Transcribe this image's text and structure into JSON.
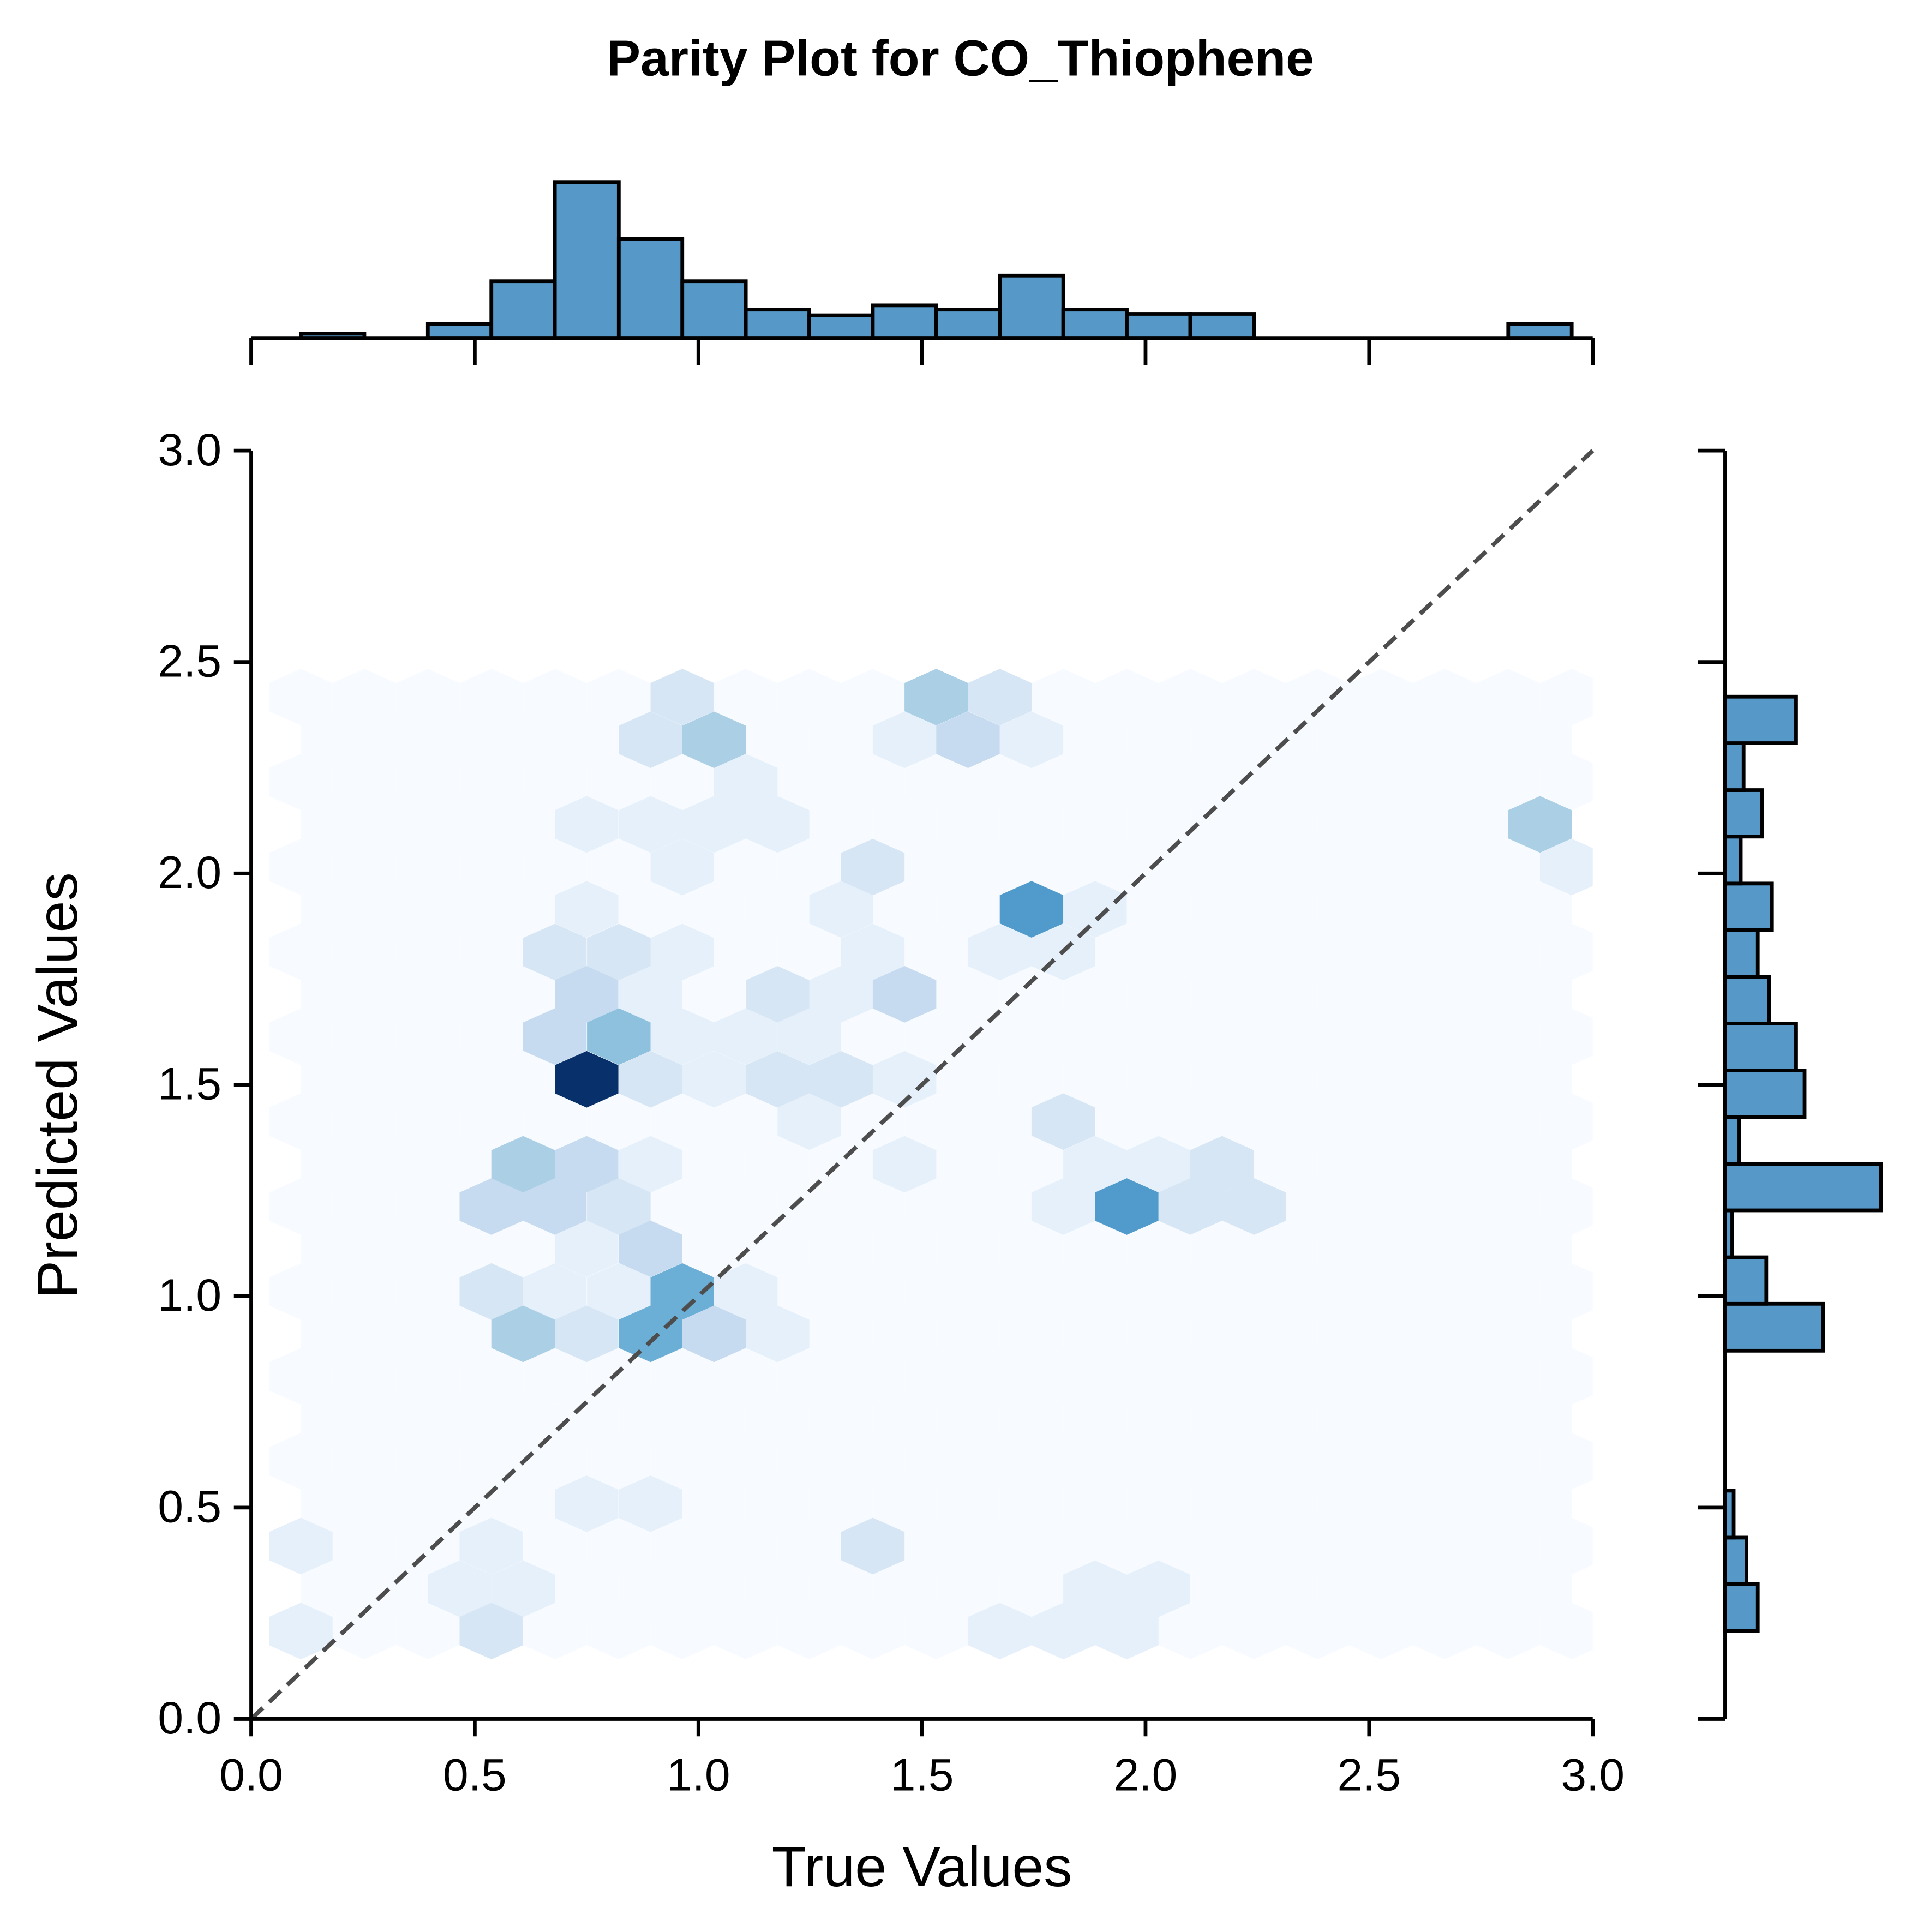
{
  "chart_data": {
    "type": "hexbin",
    "title": "Parity Plot for CO_Thiophene",
    "xlabel": "True Values",
    "ylabel": "Predicted Values",
    "xlim": [
      0,
      3
    ],
    "ylim": [
      0,
      3
    ],
    "xticks": [
      {
        "value": 0,
        "label": "0.0"
      },
      0.5,
      {
        "value": 1,
        "label": "1.0"
      },
      1.5,
      {
        "value": 2,
        "label": "2.0"
      },
      2.5,
      {
        "value": 3,
        "label": "3.0"
      }
    ],
    "yticks": [
      {
        "value": 0,
        "label": "0.0"
      },
      0.5,
      {
        "value": 1,
        "label": "1.0"
      },
      1.5,
      {
        "value": 2,
        "label": "2.0"
      },
      2.5,
      {
        "value": 3,
        "label": "3.0"
      }
    ],
    "diagonal": true,
    "hexbin": {
      "gridsize": 20,
      "extent": [
        0.111,
        2.953,
        0.208,
        2.417
      ],
      "colormap": "Blues",
      "x": [
        0.964,
        1.532,
        1.674,
        0.893,
        1.035,
        1.461,
        1.603,
        1.745,
        1.106,
        0.75,
        0.893,
        1.035,
        1.177,
        2.882,
        0.964,
        1.39,
        2.953,
        0.75,
        1.319,
        1.745,
        1.887,
        0.679,
        0.822,
        0.964,
        1.39,
        1.674,
        1.816,
        0.75,
        0.893,
        1.177,
        1.319,
        1.461,
        0.679,
        0.822,
        0.964,
        1.106,
        1.248,
        0.75,
        0.893,
        1.035,
        1.177,
        1.319,
        1.461,
        1.248,
        1.816,
        0.608,
        0.75,
        0.893,
        1.461,
        1.887,
        2.029,
        2.171,
        0.537,
        0.679,
        0.822,
        1.816,
        1.958,
        2.1,
        2.243,
        0.75,
        0.893,
        0.537,
        0.679,
        0.822,
        0.964,
        1.106,
        0.608,
        0.75,
        0.893,
        1.035,
        1.177,
        0.75,
        0.893,
        0.111,
        0.537,
        1.39,
        0.466,
        0.608,
        1.887,
        2.029,
        0.111,
        0.537,
        1.674,
        1.816,
        1.958
      ],
      "y": [
        2.417,
        2.417,
        2.417,
        2.316,
        2.316,
        2.316,
        2.316,
        2.316,
        2.216,
        2.116,
        2.116,
        2.116,
        2.116,
        2.116,
        2.015,
        2.015,
        2.015,
        1.915,
        1.915,
        1.915,
        1.915,
        1.814,
        1.814,
        1.814,
        1.814,
        1.814,
        1.814,
        1.714,
        1.714,
        1.714,
        1.714,
        1.714,
        1.614,
        1.614,
        1.614,
        1.614,
        1.614,
        1.513,
        1.513,
        1.513,
        1.513,
        1.513,
        1.513,
        1.413,
        1.413,
        1.312,
        1.312,
        1.312,
        1.312,
        1.312,
        1.312,
        1.312,
        1.212,
        1.212,
        1.212,
        1.212,
        1.212,
        1.212,
        1.212,
        1.112,
        1.112,
        1.011,
        1.011,
        1.011,
        1.011,
        1.011,
        0.911,
        0.911,
        0.911,
        0.911,
        0.911,
        0.509,
        0.509,
        0.409,
        0.409,
        0.409,
        0.308,
        0.308,
        0.308,
        0.308,
        0.208,
        0.208,
        0.208,
        0.208,
        0.208
      ],
      "counts": [
        2,
        4,
        2,
        2,
        4,
        1,
        3,
        1,
        1,
        1,
        1,
        1,
        1,
        4,
        1,
        2,
        1,
        1,
        1,
        7,
        1,
        2,
        2,
        1,
        1,
        1,
        1,
        3,
        1,
        2,
        1,
        3,
        3,
        5,
        1,
        1,
        1,
        12,
        2,
        1,
        2,
        2,
        1,
        1,
        2,
        4,
        3,
        1,
        1,
        1,
        1,
        2,
        3,
        3,
        2,
        1,
        7,
        2,
        2,
        1,
        3,
        2,
        1,
        1,
        6,
        1,
        4,
        2,
        6,
        3,
        1,
        1,
        1,
        1,
        1,
        2,
        1,
        1,
        1,
        1,
        1,
        2,
        1,
        1,
        1
      ]
    },
    "top_hist": {
      "color": "#5699c8",
      "bins": [
        0.111,
        0.253,
        0.395,
        0.537,
        0.679,
        0.822,
        0.964,
        1.106,
        1.248,
        1.39,
        1.532,
        1.674,
        1.816,
        1.958,
        2.1,
        2.243,
        2.385,
        2.527,
        2.669,
        2.811,
        2.953
      ],
      "counts": [
        0.3,
        0,
        1,
        4,
        11,
        7,
        4,
        2,
        1.6,
        2.3,
        2,
        4.4,
        2,
        1.7,
        1.7,
        0,
        0,
        0,
        0,
        1
      ]
    },
    "right_hist": {
      "color": "#5699c8",
      "bins": [
        0.208,
        0.319,
        0.429,
        0.54,
        0.65,
        0.761,
        0.871,
        0.982,
        1.092,
        1.203,
        1.313,
        1.424,
        1.534,
        1.645,
        1.755,
        1.866,
        1.976,
        2.087,
        2.197,
        2.308,
        2.418
      ],
      "counts": [
        2.3,
        1.5,
        0.6,
        0,
        0,
        0,
        6.9,
        2.9,
        0.5,
        11,
        1,
        5.6,
        5,
        3.1,
        2.3,
        3.3,
        1.1,
        2.6,
        1.3,
        5
      ]
    }
  }
}
